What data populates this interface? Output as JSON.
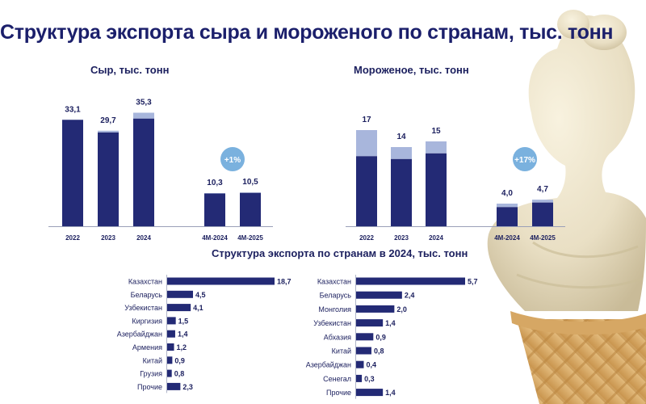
{
  "title": "Структура экспорта сыра и мороженого по странам, тыс. тонн",
  "colors": {
    "dark_navy": "#232a75",
    "light_segment": "#a8b6dc",
    "badge": "#7ab1de",
    "text": "#1b1f5e"
  },
  "chart_data": [
    {
      "type": "bar",
      "stacked": true,
      "title": "Сыр, тыс. тонн",
      "categories": [
        "2022",
        "2023",
        "2024",
        "4М-2024",
        "4М-2025"
      ],
      "totals": [
        33.1,
        29.7,
        35.3,
        10.3,
        10.5
      ],
      "value_labels": [
        "33,1",
        "29,7",
        "35,3",
        "10,3",
        "10,5"
      ],
      "series": [
        {
          "values": [
            33.1,
            29.2,
            33.5,
            10.2,
            10.4
          ]
        },
        {
          "values": [
            0.0,
            0.5,
            1.8,
            0.1,
            0.1
          ]
        }
      ],
      "growth_badge": "+1%"
    },
    {
      "type": "bar",
      "stacked": true,
      "title": "Мороженое, тыс. тонн",
      "categories": [
        "2022",
        "2023",
        "2024",
        "4М-2024",
        "4М-2025"
      ],
      "totals": [
        17,
        14,
        15,
        4.0,
        4.7
      ],
      "value_labels": [
        "17",
        "14",
        "15",
        "4,0",
        "4,7"
      ],
      "series": [
        {
          "values": [
            12.4,
            11.9,
            12.9,
            3.4,
            4.2
          ]
        },
        {
          "values": [
            4.6,
            2.1,
            2.1,
            0.6,
            0.5
          ]
        }
      ],
      "growth_badge": "+17%"
    },
    {
      "type": "bar",
      "orientation": "horizontal",
      "title": "Структура экспорта по странам в 2024, тыс. тонн",
      "categories": [
        "Казахстан",
        "Беларусь",
        "Узбекистан",
        "Киргизия",
        "Азербайджан",
        "Армения",
        "Китай",
        "Грузия",
        "Прочие"
      ],
      "values": [
        18.7,
        4.5,
        4.1,
        1.5,
        1.4,
        1.2,
        0.9,
        0.8,
        2.3
      ],
      "value_labels": [
        "18,7",
        "4,5",
        "4,1",
        "1,5",
        "1,4",
        "1,2",
        "0,9",
        "0,8",
        "2,3"
      ]
    },
    {
      "type": "bar",
      "orientation": "horizontal",
      "categories": [
        "Казахстан",
        "Беларусь",
        "Монголия",
        "Узбекистан",
        "Абхазия",
        "Китай",
        "Азербайджан",
        "Сенегал",
        "Прочие"
      ],
      "values": [
        5.7,
        2.4,
        2.0,
        1.4,
        0.9,
        0.8,
        0.4,
        0.3,
        1.4
      ],
      "value_labels": [
        "5,7",
        "2,4",
        "2,0",
        "1,4",
        "0,9",
        "0,8",
        "0,4",
        "0,3",
        "1,4"
      ]
    }
  ]
}
